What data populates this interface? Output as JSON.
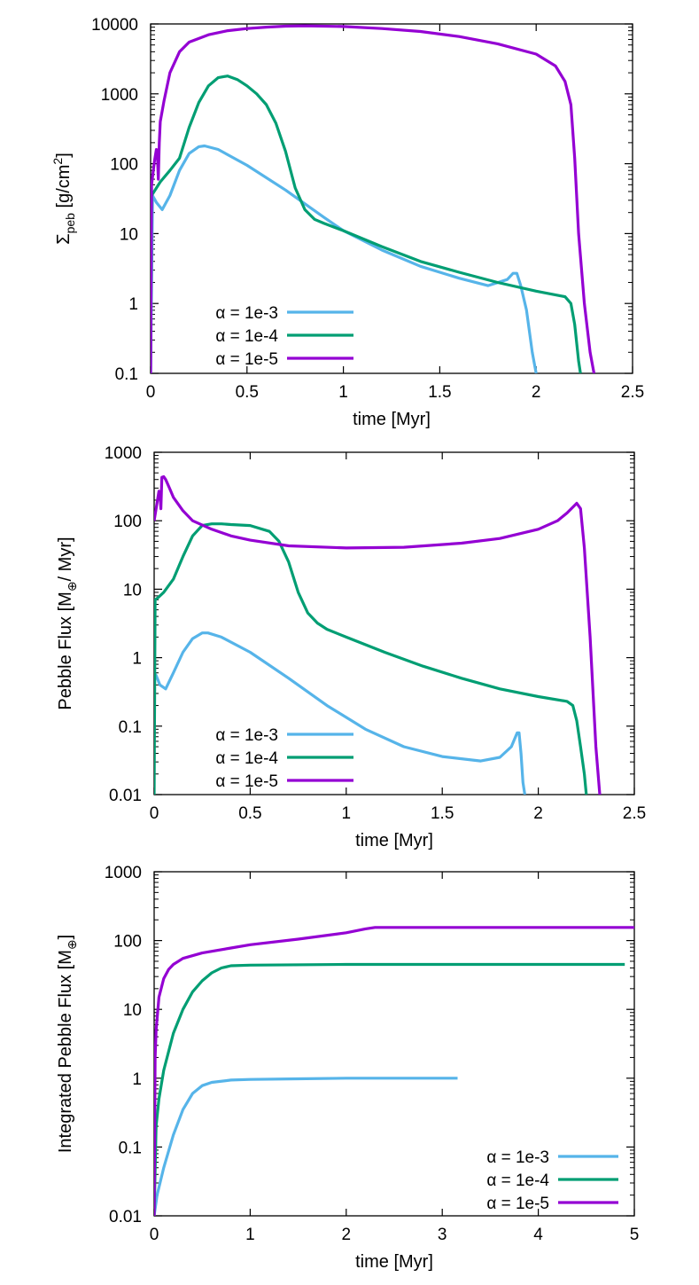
{
  "colors": {
    "alpha_1e3": "#56b4e9",
    "alpha_1e4": "#009e73",
    "alpha_1e5": "#9400d3"
  },
  "chart_data": [
    {
      "type": "line",
      "xlabel": "time [Myr]",
      "ylabel": {
        "main": "Σ",
        "sub": "peb",
        "rest": " [g/cm",
        "sup": "2",
        "end": "]"
      },
      "xlim": [
        0,
        2.5
      ],
      "ylim": [
        0.1,
        10000
      ],
      "yscale": "log",
      "xticks": [
        0,
        0.5,
        1,
        1.5,
        2,
        2.5
      ],
      "xtick_labels": [
        "0",
        "0.5",
        "1",
        "1.5",
        "2",
        "2.5"
      ],
      "yticks": [
        0.1,
        1,
        10,
        100,
        1000,
        10000
      ],
      "ytick_labels": [
        "0.1",
        "1",
        "10",
        "100",
        "1000",
        "10000"
      ],
      "legend_position": "bottom-left",
      "series": [
        {
          "name": "α = 1e-3",
          "color_key": "alpha_1e3",
          "x": [
            0,
            0.01,
            0.03,
            0.06,
            0.1,
            0.15,
            0.2,
            0.25,
            0.28,
            0.35,
            0.5,
            0.7,
            0.9,
            1.0,
            1.2,
            1.4,
            1.6,
            1.75,
            1.85,
            1.88,
            1.9,
            1.92,
            1.95,
            1.98,
            2.0
          ],
          "values": [
            0.1,
            35,
            28,
            22,
            35,
            80,
            140,
            175,
            180,
            160,
            95,
            42,
            17,
            11,
            5.8,
            3.4,
            2.3,
            1.8,
            2.2,
            2.7,
            2.7,
            1.8,
            0.8,
            0.2,
            0.1
          ]
        },
        {
          "name": "α = 1e-4",
          "color_key": "alpha_1e4",
          "x": [
            0,
            0.005,
            0.05,
            0.1,
            0.15,
            0.2,
            0.25,
            0.3,
            0.35,
            0.4,
            0.45,
            0.5,
            0.55,
            0.6,
            0.65,
            0.7,
            0.75,
            0.8,
            0.85,
            0.9,
            1.0,
            1.2,
            1.4,
            1.6,
            1.8,
            2.0,
            2.15,
            2.18,
            2.2,
            2.22,
            2.23
          ],
          "values": [
            0.1,
            35,
            55,
            80,
            120,
            330,
            750,
            1300,
            1700,
            1800,
            1600,
            1300,
            1000,
            700,
            380,
            150,
            45,
            22,
            16,
            14,
            11,
            6.5,
            4.0,
            2.8,
            2.0,
            1.5,
            1.25,
            1.0,
            0.5,
            0.15,
            0.1
          ]
        },
        {
          "name": "α = 1e-5",
          "color_key": "alpha_1e5",
          "x": [
            0,
            0.005,
            0.02,
            0.03,
            0.035,
            0.04,
            0.045,
            0.05,
            0.07,
            0.1,
            0.15,
            0.2,
            0.3,
            0.4,
            0.5,
            0.6,
            0.7,
            0.8,
            1.0,
            1.2,
            1.4,
            1.6,
            1.8,
            2.0,
            2.1,
            2.15,
            2.18,
            2.2,
            2.22,
            2.25,
            2.28,
            2.3
          ],
          "values": [
            0.1,
            50,
            110,
            160,
            140,
            60,
            200,
            400,
            800,
            2000,
            4000,
            5500,
            7000,
            8000,
            8600,
            9000,
            9300,
            9400,
            9200,
            8600,
            7800,
            6600,
            5200,
            3700,
            2500,
            1500,
            700,
            120,
            10,
            1,
            0.2,
            0.1
          ]
        }
      ]
    },
    {
      "type": "line",
      "xlabel": "time [Myr]",
      "ylabel": {
        "main": "Pebble Flux [M",
        "sub": "⊕",
        "rest": "/ Myr]",
        "sup": "",
        "end": ""
      },
      "xlim": [
        0,
        2.5
      ],
      "ylim": [
        0.01,
        1000
      ],
      "yscale": "log",
      "xticks": [
        0,
        0.5,
        1,
        1.5,
        2,
        2.5
      ],
      "xtick_labels": [
        "0",
        "0.5",
        "1",
        "1.5",
        "2",
        "2.5"
      ],
      "yticks": [
        0.01,
        0.1,
        1,
        10,
        100,
        1000
      ],
      "ytick_labels": [
        "0.01",
        "0.1",
        "1",
        "10",
        "100",
        "1000"
      ],
      "legend_position": "bottom-left",
      "series": [
        {
          "name": "α = 1e-3",
          "color_key": "alpha_1e3",
          "x": [
            0,
            0.01,
            0.03,
            0.06,
            0.1,
            0.15,
            0.2,
            0.25,
            0.28,
            0.35,
            0.5,
            0.7,
            0.9,
            1.1,
            1.3,
            1.5,
            1.7,
            1.8,
            1.86,
            1.89,
            1.9,
            1.91,
            1.92,
            1.93
          ],
          "values": [
            0.6,
            0.55,
            0.4,
            0.35,
            0.6,
            1.2,
            1.9,
            2.3,
            2.3,
            2.0,
            1.2,
            0.5,
            0.2,
            0.09,
            0.05,
            0.036,
            0.031,
            0.035,
            0.05,
            0.08,
            0.08,
            0.04,
            0.015,
            0.01
          ]
        },
        {
          "name": "α = 1e-4",
          "color_key": "alpha_1e4",
          "x": [
            0,
            0.005,
            0.02,
            0.05,
            0.1,
            0.15,
            0.2,
            0.25,
            0.3,
            0.35,
            0.4,
            0.5,
            0.6,
            0.65,
            0.7,
            0.75,
            0.8,
            0.85,
            0.9,
            1.0,
            1.2,
            1.4,
            1.6,
            1.8,
            2.0,
            2.15,
            2.18,
            2.2,
            2.22,
            2.24,
            2.25
          ],
          "values": [
            0.01,
            7,
            7.5,
            9,
            14,
            30,
            60,
            85,
            90,
            90,
            88,
            85,
            70,
            50,
            25,
            9,
            4.5,
            3.2,
            2.6,
            2.0,
            1.2,
            0.75,
            0.5,
            0.35,
            0.27,
            0.23,
            0.2,
            0.12,
            0.05,
            0.02,
            0.01
          ]
        },
        {
          "name": "α = 1e-5",
          "color_key": "alpha_1e5",
          "x": [
            0,
            0.01,
            0.025,
            0.03,
            0.035,
            0.04,
            0.05,
            0.06,
            0.08,
            0.1,
            0.15,
            0.2,
            0.3,
            0.4,
            0.5,
            0.7,
            1.0,
            1.3,
            1.6,
            1.8,
            2.0,
            2.1,
            2.15,
            2.2,
            2.22,
            2.24,
            2.27,
            2.3,
            2.32
          ],
          "values": [
            100,
            150,
            270,
            250,
            150,
            430,
            440,
            400,
            300,
            220,
            140,
            100,
            75,
            60,
            52,
            43,
            40,
            41,
            47,
            55,
            75,
            100,
            130,
            180,
            150,
            40,
            2,
            0.05,
            0.01
          ]
        }
      ]
    },
    {
      "type": "line",
      "xlabel": "time [Myr]",
      "ylabel": {
        "main": "Integrated Pebble Flux [M",
        "sub": "⊕",
        "rest": "]",
        "sup": "",
        "end": ""
      },
      "xlim": [
        0,
        5
      ],
      "ylim": [
        0.01,
        1000
      ],
      "yscale": "log",
      "xticks": [
        0,
        1,
        2,
        3,
        4,
        5
      ],
      "xtick_labels": [
        "0",
        "1",
        "2",
        "3",
        "4",
        "5"
      ],
      "yticks": [
        0.01,
        0.1,
        1,
        10,
        100,
        1000
      ],
      "ytick_labels": [
        "0.01",
        "0.1",
        "1",
        "10",
        "100",
        "1000"
      ],
      "legend_position": "bottom-right",
      "series": [
        {
          "name": "α = 1e-3",
          "color_key": "alpha_1e3",
          "x": [
            0,
            0.03,
            0.1,
            0.2,
            0.3,
            0.4,
            0.5,
            0.6,
            0.8,
            1.0,
            1.5,
            2.0,
            3.16
          ],
          "values": [
            0.01,
            0.02,
            0.05,
            0.15,
            0.35,
            0.6,
            0.78,
            0.87,
            0.94,
            0.96,
            0.98,
            1.0,
            1.0
          ]
        },
        {
          "name": "α = 1e-4",
          "color_key": "alpha_1e4",
          "x": [
            0,
            0.02,
            0.05,
            0.1,
            0.2,
            0.3,
            0.4,
            0.5,
            0.6,
            0.7,
            0.8,
            1.0,
            2.0,
            3.0,
            4.0,
            4.9
          ],
          "values": [
            0.01,
            0.2,
            0.5,
            1.3,
            4.5,
            10,
            18,
            26,
            34,
            40,
            43,
            44,
            45,
            45,
            45,
            45
          ]
        },
        {
          "name": "α = 1e-5",
          "color_key": "alpha_1e5",
          "x": [
            0,
            0.01,
            0.02,
            0.05,
            0.1,
            0.15,
            0.2,
            0.3,
            0.5,
            0.8,
            1.0,
            1.5,
            2.0,
            2.2,
            2.3,
            3.0,
            4.0,
            5.0
          ],
          "values": [
            0.01,
            2,
            5,
            15,
            28,
            38,
            45,
            55,
            66,
            78,
            87,
            105,
            130,
            148,
            155,
            155,
            155,
            155
          ]
        }
      ]
    }
  ]
}
